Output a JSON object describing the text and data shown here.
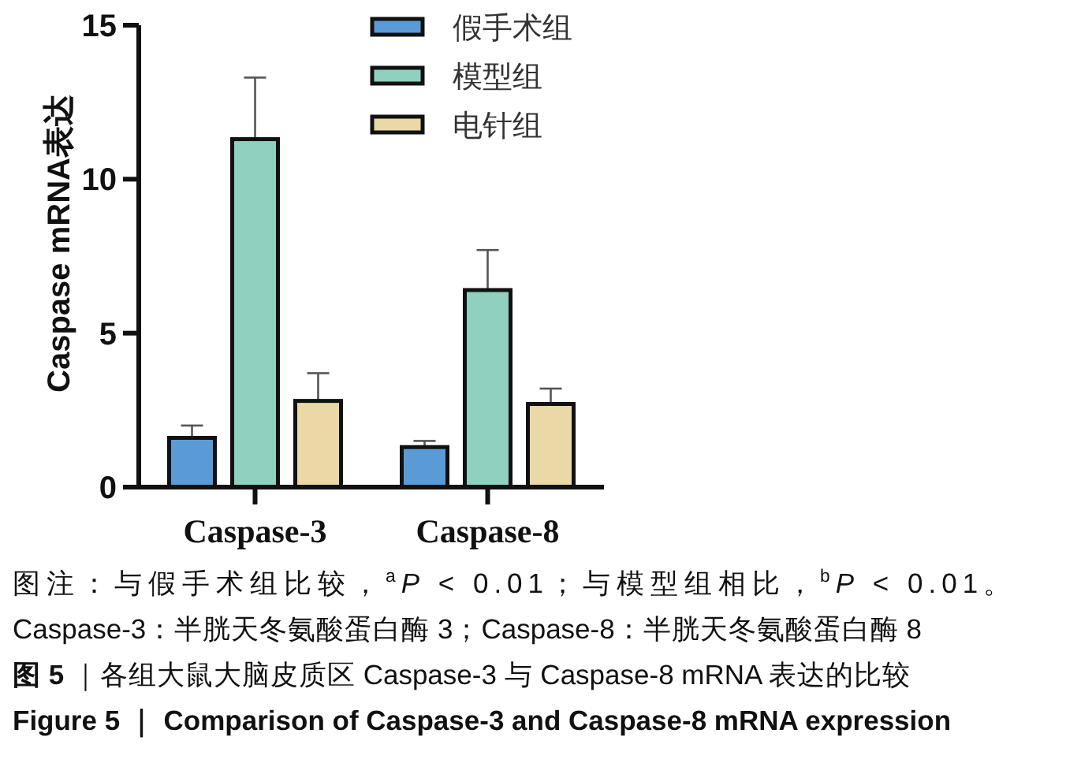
{
  "chart_data": {
    "type": "bar",
    "ylabel": "Caspase mRNA表达",
    "categories": [
      "Caspase-3",
      "Caspase-8"
    ],
    "series": [
      {
        "name": "假手术组",
        "color": "#5b9bd5",
        "values": [
          1.6,
          1.3
        ],
        "errors": [
          [
            1.6,
            2.0
          ],
          [
            1.3,
            1.5
          ]
        ]
      },
      {
        "name": "模型组",
        "color": "#8fd0bf",
        "values": [
          11.3,
          6.4
        ],
        "errors": [
          [
            11.3,
            13.3
          ],
          [
            6.4,
            7.7
          ]
        ]
      },
      {
        "name": "电针组",
        "color": "#ead9a6",
        "values": [
          2.8,
          2.7
        ],
        "errors": [
          [
            2.8,
            3.7
          ],
          [
            2.7,
            3.2
          ]
        ]
      }
    ],
    "ylim": [
      0,
      15
    ],
    "yticks": [
      0,
      5,
      10,
      15
    ],
    "legend": "top right",
    "annotations": [
      "图注：与假手术组比较，$^{a}$*P* < 0.01；与模型组相比，$^{b}$*P* < 0.01。",
      "Caspase-3：半胱天冬氨酸蛋白酶 3；Caspase-8：半胱天冬氨酸蛋白酶 8",
      "**图 5** ｜各组大鼠大脑皮质区 Caspase-3 与 Caspase-8 mRNA 表达的比较",
      "Figure 5 ｜ Comparison of Caspase-3 and Caspase-8 mRNA expression"
    ]
  }
}
